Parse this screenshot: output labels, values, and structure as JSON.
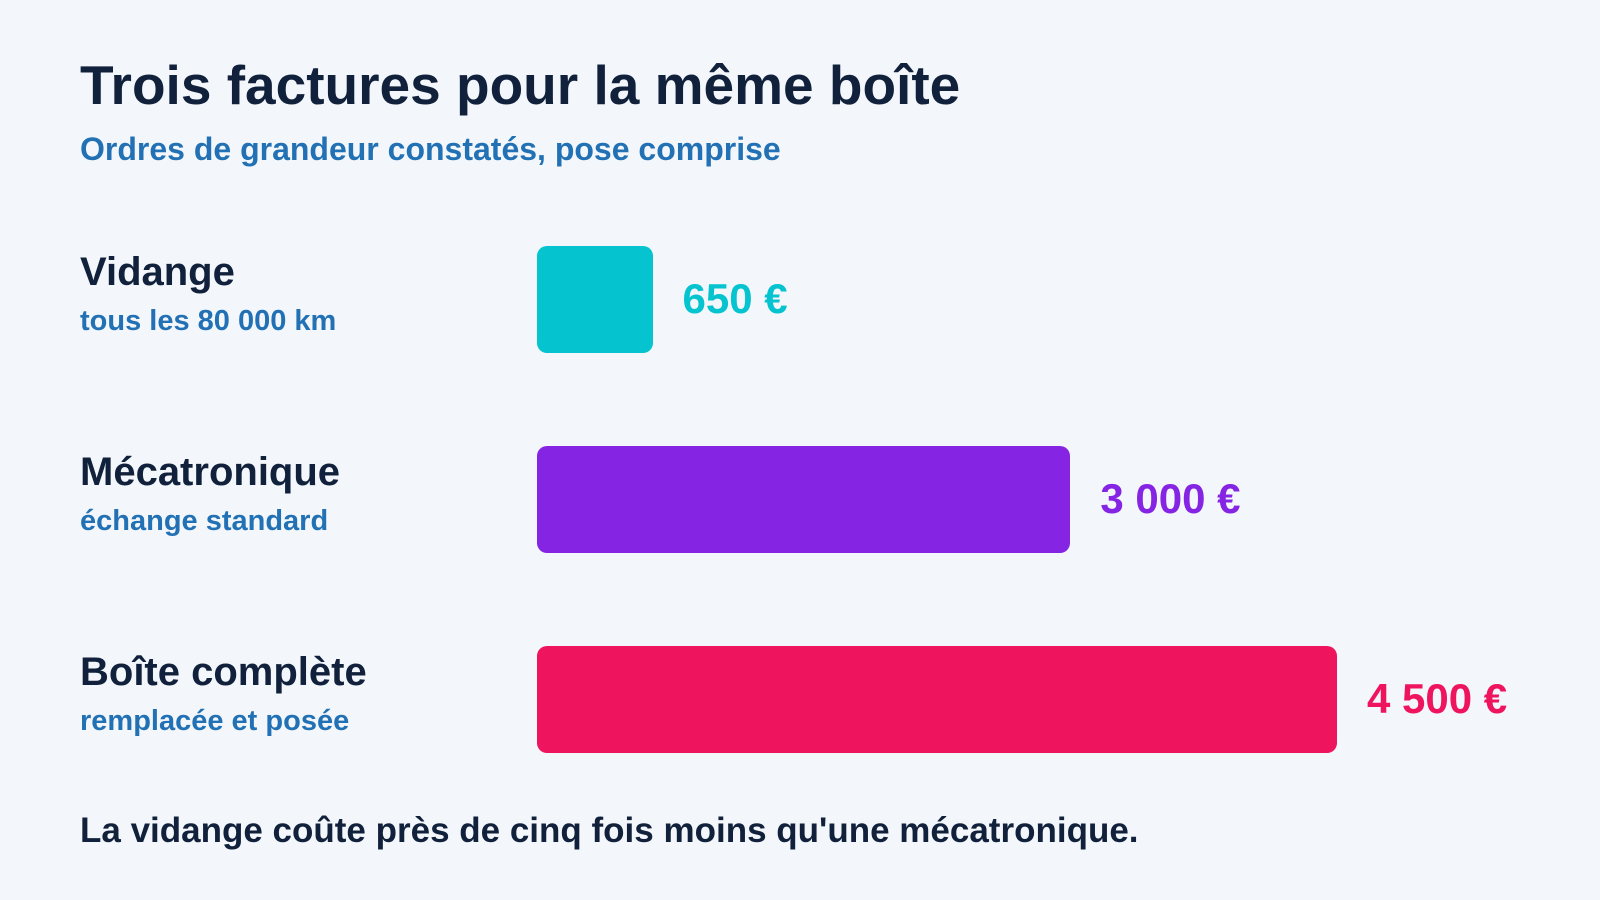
{
  "title": "Trois factures pour la même boîte",
  "subtitle": "Ordres de grandeur constatés, pose comprise",
  "footnote": "La vidange coûte près de cinq fois moins qu'une mécatronique.",
  "chart_data": {
    "type": "bar",
    "orientation": "horizontal",
    "categories": [
      "Vidange",
      "Mécatronique",
      "Boîte complète"
    ],
    "notes": [
      "tous les 80 000 km",
      "échange standard",
      "remplacée et posée"
    ],
    "values": [
      650,
      3000,
      4500
    ],
    "value_labels": [
      "650 €",
      "3 000 €",
      "4 500 €"
    ],
    "colors": [
      "#05c3cf",
      "#8524e3",
      "#ee155e"
    ],
    "title": "Trois factures pour la même boîte",
    "subtitle": "Ordres de grandeur constatés, pose comprise",
    "xlabel": "",
    "ylabel": "",
    "grid": false,
    "legend": "none"
  }
}
